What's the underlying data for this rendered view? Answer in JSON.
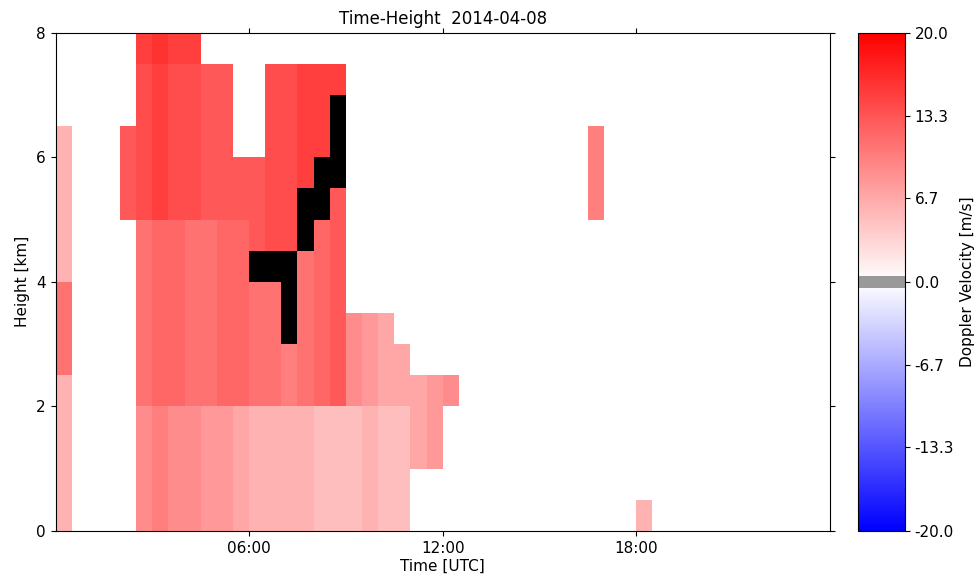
{
  "chart_data": {
    "type": "heatmap",
    "title": "Time-Height  2014-04-08",
    "x_label": "Time [UTC]",
    "y_label": "Height [km]",
    "xlim": [
      0,
      24
    ],
    "ylim": [
      0,
      8
    ],
    "xticks": [
      {
        "value": 6,
        "label": "06:00"
      },
      {
        "value": 12,
        "label": "12:00"
      },
      {
        "value": 18,
        "label": "18:00"
      }
    ],
    "yticks": [
      0,
      2,
      4,
      6,
      8
    ],
    "grid": false,
    "time_edges": [
      0,
      0.5,
      1,
      1.5,
      2,
      2.5,
      3,
      3.5,
      4,
      4.5,
      5,
      5.5,
      6,
      6.5,
      7,
      7.5,
      8,
      8.5,
      9,
      9.5,
      10,
      10.5,
      11,
      11.5,
      12,
      12.5,
      13,
      13.5,
      14,
      14.5,
      15,
      15.5,
      16,
      16.5,
      17,
      17.5,
      18,
      18.5,
      19,
      19.5,
      20,
      20.5,
      21,
      21.5,
      22,
      22.5,
      23,
      23.5,
      24
    ],
    "height_edges": [
      0,
      0.5,
      1,
      1.5,
      2,
      2.5,
      3,
      3.5,
      4,
      4.5,
      5,
      5.5,
      6,
      6.5,
      7,
      7.5,
      8
    ],
    "cells": [
      [
        6,
        null,
        null,
        null,
        null,
        9,
        10,
        9,
        9,
        8,
        8,
        7,
        6,
        6,
        6,
        6,
        5,
        5,
        5,
        6,
        5,
        5,
        null,
        null,
        null,
        null,
        null,
        null,
        null,
        null,
        null,
        null,
        null,
        null,
        null,
        null,
        6,
        null,
        null,
        null,
        null,
        null,
        null,
        null,
        null,
        null,
        null,
        null
      ],
      [
        6,
        null,
        null,
        null,
        null,
        9,
        10,
        9,
        9,
        8,
        8,
        7,
        6,
        6,
        6,
        6,
        5,
        5,
        5,
        6,
        5,
        5,
        null,
        null,
        null,
        null,
        null,
        null,
        null,
        null,
        null,
        null,
        null,
        null,
        null,
        null,
        null,
        null,
        null,
        null,
        null,
        null,
        null,
        null,
        null,
        null,
        null,
        null
      ],
      [
        6,
        null,
        null,
        null,
        null,
        9,
        10,
        9,
        9,
        8,
        8,
        7,
        6,
        6,
        6,
        6,
        5,
        5,
        5,
        6,
        5,
        5,
        7,
        8,
        null,
        null,
        null,
        null,
        null,
        null,
        null,
        null,
        null,
        null,
        null,
        null,
        null,
        null,
        null,
        null,
        null,
        null,
        null,
        null,
        null,
        null,
        null,
        null
      ],
      [
        6,
        null,
        null,
        null,
        null,
        9,
        10,
        9,
        9,
        8,
        8,
        7,
        6,
        6,
        6,
        6,
        5,
        5,
        5,
        6,
        5,
        5,
        7,
        8,
        null,
        null,
        null,
        null,
        null,
        null,
        null,
        null,
        null,
        null,
        null,
        null,
        null,
        null,
        null,
        null,
        null,
        null,
        null,
        null,
        null,
        null,
        null,
        null
      ],
      [
        6,
        null,
        null,
        null,
        null,
        11,
        12,
        12,
        11,
        11,
        12,
        12,
        11,
        11,
        10,
        11,
        12,
        13,
        9,
        8,
        7,
        7,
        7,
        8,
        9,
        null,
        null,
        null,
        null,
        null,
        null,
        null,
        null,
        null,
        null,
        null,
        null,
        null,
        null,
        null,
        null,
        null,
        null,
        null,
        null,
        null,
        null,
        null
      ],
      [
        11,
        null,
        null,
        null,
        null,
        11,
        12,
        12,
        11,
        11,
        12,
        12,
        11,
        11,
        10,
        11,
        12,
        13,
        9,
        8,
        7,
        7,
        null,
        null,
        null,
        null,
        null,
        null,
        null,
        null,
        null,
        null,
        null,
        null,
        null,
        null,
        null,
        null,
        null,
        null,
        null,
        null,
        null,
        null,
        null,
        null,
        null,
        null
      ],
      [
        11,
        null,
        null,
        null,
        null,
        11,
        12,
        12,
        11,
        11,
        12,
        12,
        11,
        11,
        22,
        11,
        12,
        13,
        9,
        8,
        7,
        null,
        null,
        null,
        null,
        null,
        null,
        null,
        null,
        null,
        null,
        null,
        null,
        null,
        null,
        null,
        null,
        null,
        null,
        null,
        null,
        null,
        null,
        null,
        null,
        null,
        null,
        null
      ],
      [
        11,
        null,
        null,
        null,
        null,
        11,
        12,
        12,
        11,
        11,
        12,
        12,
        11,
        11,
        22,
        11,
        12,
        13,
        null,
        null,
        null,
        null,
        null,
        null,
        null,
        null,
        null,
        null,
        null,
        null,
        null,
        null,
        null,
        null,
        null,
        null,
        null,
        null,
        null,
        null,
        null,
        null,
        null,
        null,
        null,
        null,
        null,
        null
      ],
      [
        6,
        null,
        null,
        null,
        null,
        11,
        12,
        12,
        11,
        11,
        12,
        12,
        22,
        22,
        22,
        11,
        12,
        13,
        null,
        null,
        null,
        null,
        null,
        null,
        null,
        null,
        null,
        null,
        null,
        null,
        null,
        null,
        null,
        null,
        null,
        null,
        null,
        null,
        null,
        null,
        null,
        null,
        null,
        null,
        null,
        null,
        null,
        null
      ],
      [
        6,
        null,
        null,
        null,
        null,
        11,
        12,
        12,
        11,
        11,
        12,
        12,
        13,
        14,
        14,
        22,
        12,
        13,
        null,
        null,
        null,
        null,
        null,
        null,
        null,
        null,
        null,
        null,
        null,
        null,
        null,
        null,
        null,
        null,
        null,
        null,
        null,
        null,
        null,
        null,
        null,
        null,
        null,
        null,
        null,
        null,
        null,
        null
      ],
      [
        6,
        null,
        null,
        null,
        13,
        14,
        15,
        14,
        14,
        13,
        13,
        13,
        13,
        14,
        14,
        22,
        22,
        13,
        null,
        null,
        null,
        null,
        null,
        null,
        null,
        null,
        null,
        null,
        null,
        null,
        null,
        null,
        null,
        10,
        null,
        null,
        null,
        null,
        null,
        null,
        null,
        null,
        null,
        null,
        null,
        null,
        null,
        null
      ],
      [
        6,
        null,
        null,
        null,
        13,
        14,
        15,
        14,
        14,
        13,
        13,
        13,
        13,
        14,
        14,
        15,
        22,
        22,
        null,
        null,
        null,
        null,
        null,
        null,
        null,
        null,
        null,
        null,
        null,
        null,
        null,
        null,
        null,
        10,
        null,
        null,
        null,
        null,
        null,
        null,
        null,
        null,
        null,
        null,
        null,
        null,
        null,
        null
      ],
      [
        6,
        null,
        null,
        null,
        13,
        14,
        15,
        14,
        14,
        13,
        13,
        null,
        null,
        14,
        14,
        15,
        15,
        22,
        null,
        null,
        null,
        null,
        null,
        null,
        null,
        null,
        null,
        null,
        null,
        null,
        null,
        null,
        null,
        10,
        null,
        null,
        null,
        null,
        null,
        null,
        null,
        null,
        null,
        null,
        null,
        null,
        null,
        null
      ],
      [
        null,
        null,
        null,
        null,
        null,
        14,
        15,
        14,
        14,
        13,
        13,
        null,
        null,
        14,
        14,
        15,
        15,
        22,
        null,
        null,
        null,
        null,
        null,
        null,
        null,
        null,
        null,
        null,
        null,
        null,
        null,
        null,
        null,
        null,
        null,
        null,
        null,
        null,
        null,
        null,
        null,
        null,
        null,
        null,
        null,
        null,
        null,
        null
      ],
      [
        null,
        null,
        null,
        null,
        null,
        14,
        15,
        14,
        14,
        13,
        13,
        null,
        null,
        14,
        14,
        15,
        15,
        15,
        null,
        null,
        null,
        null,
        null,
        null,
        null,
        null,
        null,
        null,
        null,
        null,
        null,
        null,
        null,
        null,
        null,
        null,
        null,
        null,
        null,
        null,
        null,
        null,
        null,
        null,
        null,
        null,
        null,
        null
      ],
      [
        null,
        null,
        null,
        null,
        null,
        15,
        16,
        15,
        15,
        null,
        null,
        null,
        null,
        null,
        null,
        null,
        null,
        null,
        null,
        null,
        null,
        null,
        null,
        null,
        null,
        null,
        null,
        null,
        null,
        null,
        null,
        null,
        null,
        null,
        null,
        null,
        null,
        null,
        null,
        null,
        null,
        null,
        null,
        null,
        null,
        null,
        null,
        null
      ]
    ],
    "colorbar": {
      "label": "Doppler Velocity [m/s]",
      "range": [
        -20,
        20
      ],
      "ticks": [
        {
          "value": -20,
          "label": "-20.0"
        },
        -13.3,
        -6.7,
        {
          "value": 0,
          "label": "0.0"
        },
        6.7,
        13.3,
        {
          "value": 20,
          "label": "20.0"
        }
      ]
    }
  }
}
